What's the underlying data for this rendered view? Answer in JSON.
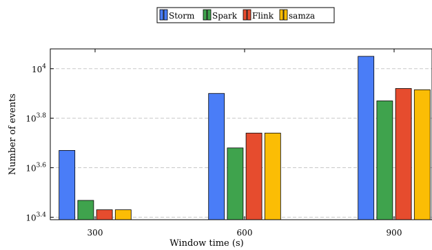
{
  "chart_data": {
    "type": "bar",
    "categories": [
      "300",
      "600",
      "900"
    ],
    "series": [
      {
        "name": "Storm",
        "color": "#4a7df7",
        "values": [
          4677,
          7943,
          11220
        ]
      },
      {
        "name": "Spark",
        "color": "#3fa34d",
        "values": [
          2938,
          4786,
          7413
        ]
      },
      {
        "name": "Flink",
        "color": "#e64c2e",
        "values": [
          2692,
          5495,
          8318
        ]
      },
      {
        "name": "samza",
        "color": "#fbbd05",
        "values": [
          2692,
          5495,
          8222
        ]
      }
    ],
    "xlabel": "Window time (s)",
    "ylabel": "Number of events",
    "y_scale": "log",
    "ylim": [
      2455,
      12023
    ],
    "yticks": [
      {
        "base": "10",
        "exp": "3.4",
        "value": 2512
      },
      {
        "base": "10",
        "exp": "3.6",
        "value": 3981
      },
      {
        "base": "10",
        "exp": "3.8",
        "value": 6310
      },
      {
        "base": "10",
        "exp": "4",
        "value": 10000
      }
    ],
    "grid": "horizontal dashed",
    "legend_position": "top-center"
  }
}
